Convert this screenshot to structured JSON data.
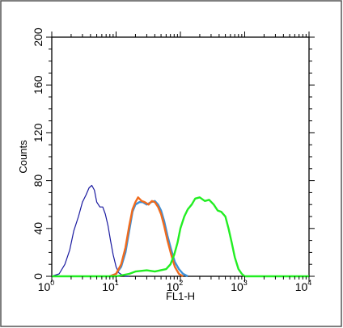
{
  "chart_data": {
    "type": "line",
    "title": "",
    "xlabel": "FL1-H",
    "ylabel": "Counts",
    "x_scale": "log",
    "xlim": [
      1,
      10000
    ],
    "ylim": [
      0,
      200
    ],
    "x_ticks": [
      {
        "base": "10",
        "exp": "0",
        "value": 1
      },
      {
        "base": "10",
        "exp": "1",
        "value": 10
      },
      {
        "base": "10",
        "exp": "2",
        "value": 100
      },
      {
        "base": "10",
        "exp": "3",
        "value": 1000
      },
      {
        "base": "10",
        "exp": "4",
        "value": 10000
      }
    ],
    "y_ticks": [
      "0",
      "40",
      "80",
      "120",
      "160",
      "200"
    ],
    "grid": false,
    "series": [
      {
        "color": "#1a1aa0",
        "x": [
          1.0,
          1.3,
          1.6,
          1.9,
          2.2,
          2.6,
          3.0,
          3.4,
          3.8,
          4.2,
          4.6,
          5.0,
          5.6,
          6.2,
          6.8,
          7.5,
          8.2,
          9.0,
          10.0,
          11.0,
          12.5,
          14.0,
          16.0
        ],
        "y": [
          0,
          2,
          10,
          22,
          38,
          50,
          62,
          68,
          74,
          76,
          72,
          62,
          58,
          58,
          52,
          42,
          30,
          18,
          8,
          3,
          1,
          0,
          0
        ]
      },
      {
        "color": "#3a8fd8",
        "x": [
          8.0,
          10.0,
          12.0,
          14.0,
          16.0,
          18.0,
          20.0,
          23.0,
          26.0,
          30.0,
          35.0,
          40.0,
          45.0,
          50.0,
          56.0,
          63.0,
          72.0,
          82.0,
          95.0,
          110.0,
          130.0
        ],
        "y": [
          0,
          2,
          8,
          20,
          38,
          54,
          60,
          62,
          62,
          60,
          62,
          63,
          60,
          55,
          46,
          34,
          22,
          12,
          6,
          2,
          0
        ]
      },
      {
        "color": "#f06a1c",
        "x": [
          8.0,
          10.0,
          12.0,
          14.0,
          16.0,
          18.0,
          20.0,
          22.0,
          25.0,
          28.0,
          32.0,
          36.0,
          40.0,
          45.0,
          50.0,
          56.0,
          63.0,
          72.0,
          82.0,
          95.0,
          110.0
        ],
        "y": [
          0,
          2,
          10,
          24,
          42,
          56,
          62,
          66,
          63,
          62,
          60,
          63,
          62,
          58,
          52,
          42,
          30,
          18,
          8,
          2,
          0
        ]
      },
      {
        "color": "#22ee22",
        "x": [
          1.0,
          5.0,
          10.0,
          16.0,
          20.0,
          30.0,
          40.0,
          60.0,
          70.0,
          80.0,
          90.0,
          100.0,
          115.0,
          130.0,
          150.0,
          170.0,
          200.0,
          240.0,
          280.0,
          330.0,
          380.0,
          430.0,
          500.0,
          560.0,
          630.0,
          700.0,
          800.0,
          900.0,
          1000.0,
          2000.0,
          10000.0
        ],
        "y": [
          0,
          0,
          0,
          2,
          4,
          5,
          4,
          6,
          10,
          18,
          28,
          40,
          50,
          56,
          60,
          65,
          66,
          63,
          64,
          60,
          55,
          54,
          50,
          40,
          28,
          16,
          6,
          2,
          0,
          0,
          0
        ]
      }
    ]
  }
}
